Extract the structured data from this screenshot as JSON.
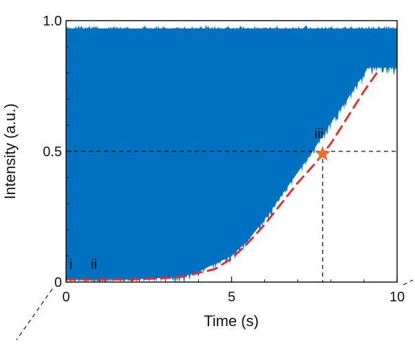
{
  "chart_data": {
    "type": "area",
    "title": "",
    "xlabel": "Time (s)",
    "ylabel": "Intensity (a.u.)",
    "xlim": [
      0,
      10
    ],
    "ylim": [
      0,
      1.0
    ],
    "x_ticks": [
      0,
      5,
      10
    ],
    "x_tick_labels": [
      "0",
      "5",
      "10"
    ],
    "y_ticks": [
      0,
      0.5,
      1.0
    ],
    "y_tick_labels": [
      "0",
      "0.5",
      "1.0"
    ],
    "grid": false,
    "colors": {
      "fill": "#0070c0",
      "curve": "#e03030",
      "star": "#f26a2b",
      "reference": "#111111"
    },
    "series": [
      {
        "style": "filled-band-noise",
        "x": [
          0,
          2.0,
          3.5,
          4.0,
          4.5,
          5.0,
          5.5,
          6.0,
          6.5,
          7.0,
          7.5,
          8.0,
          8.5,
          8.8,
          9.0,
          9.1,
          10.0
        ],
        "lower": [
          0.01,
          0.01,
          0.02,
          0.04,
          0.07,
          0.1,
          0.16,
          0.24,
          0.33,
          0.42,
          0.51,
          0.61,
          0.7,
          0.76,
          0.79,
          0.82,
          0.82
        ],
        "upper": [
          0.97,
          0.97,
          0.97,
          0.97,
          0.97,
          0.97,
          0.97,
          0.97,
          0.97,
          0.97,
          0.97,
          0.97,
          0.97,
          0.97,
          0.97,
          0.97,
          0.97
        ]
      },
      {
        "style": "dashed-curve",
        "x": [
          0,
          1.0,
          2.0,
          3.0,
          3.5,
          4.0,
          4.5,
          5.0,
          5.5,
          6.0,
          6.5,
          7.0,
          7.5,
          7.75,
          8.0,
          8.5,
          9.0,
          9.5
        ],
        "y": [
          0.01,
          0.01,
          0.01,
          0.015,
          0.02,
          0.035,
          0.05,
          0.09,
          0.15,
          0.22,
          0.3,
          0.38,
          0.45,
          0.49,
          0.53,
          0.63,
          0.73,
          0.82
        ]
      }
    ],
    "reference_lines": {
      "horizontal_y": 0.5,
      "vertical_x": 7.75
    },
    "marker": {
      "shape": "star",
      "x": 7.75,
      "y": 0.49
    },
    "annotations": [
      {
        "text": "i",
        "x": 0.1,
        "y": 0.05
      },
      {
        "text": "ii",
        "x": 0.75,
        "y": 0.05
      },
      {
        "text": "iii",
        "x": 7.5,
        "y": 0.55
      }
    ]
  }
}
